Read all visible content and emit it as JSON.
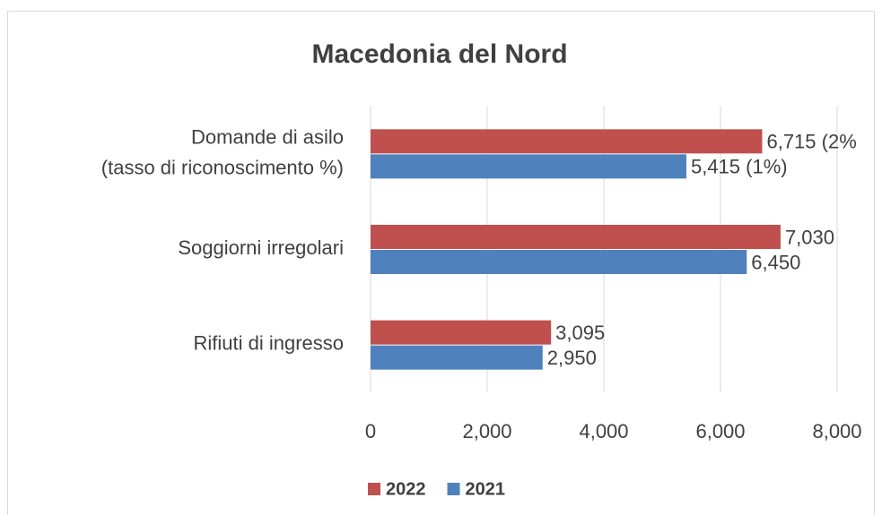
{
  "chart_data": {
    "type": "hbar",
    "title": "Macedonia del Nord",
    "categories": [
      [
        "Domande di asilo",
        "(tasso di riconoscimento %)"
      ],
      [
        "Soggiorni irregolari"
      ],
      [
        "Rifiuti di ingresso"
      ]
    ],
    "series": [
      {
        "name": "2022",
        "color": "#c0504d",
        "values": [
          6715,
          7030,
          3095
        ],
        "value_labels": [
          "6,715 (2%",
          "7,030",
          "3,095"
        ]
      },
      {
        "name": "2021",
        "color": "#4f81bd",
        "values": [
          5415,
          6450,
          2950
        ],
        "value_labels": [
          "5,415 (1%)",
          "6,450",
          "2,950"
        ]
      }
    ],
    "xlim": [
      0,
      8000
    ],
    "xticks": [
      0,
      {
        "value": 2000,
        "label": "2,000"
      },
      {
        "value": 4000,
        "label": "4,000"
      },
      {
        "value": 6000,
        "label": "6,000"
      },
      {
        "value": 8000,
        "label": "8,000"
      }
    ],
    "grid": true,
    "legend": "bottom"
  }
}
